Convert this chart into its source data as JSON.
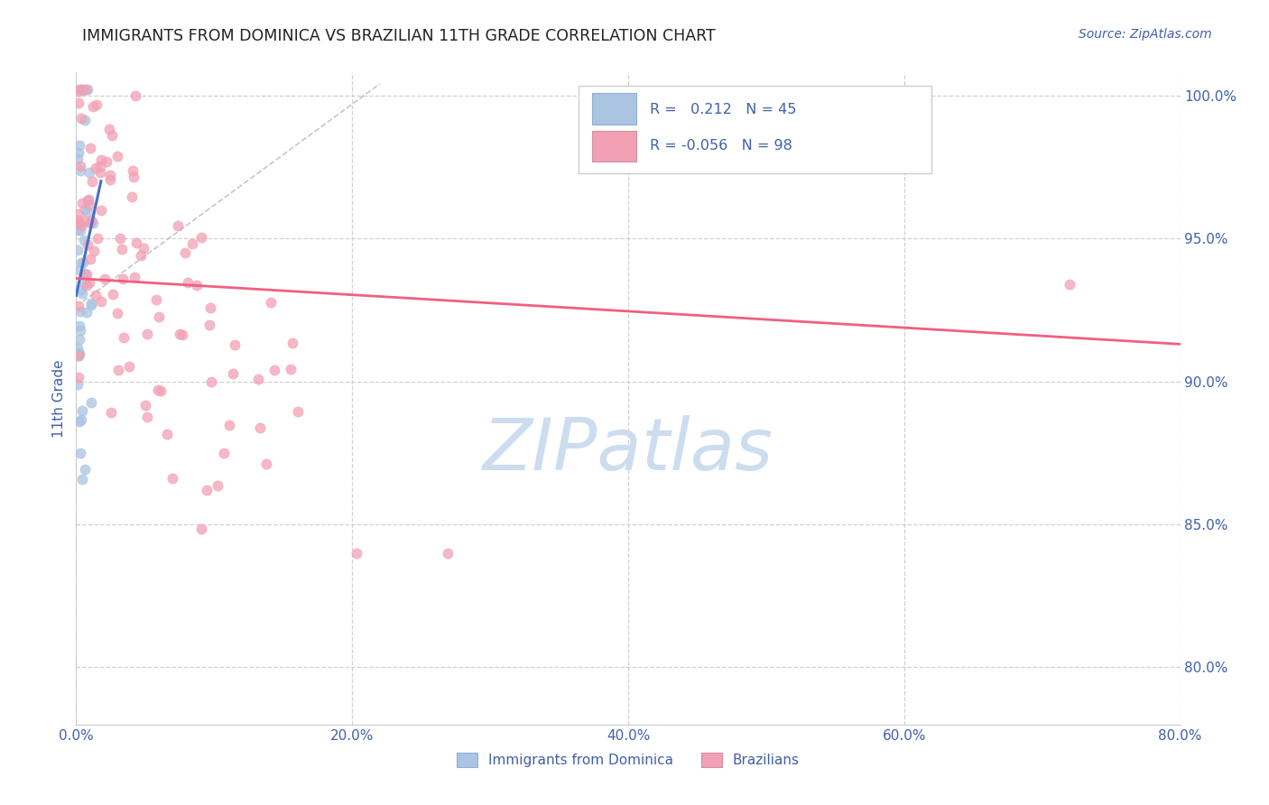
{
  "title": "IMMIGRANTS FROM DOMINICA VS BRAZILIAN 11TH GRADE CORRELATION CHART",
  "source": "Source: ZipAtlas.com",
  "ylabel": "11th Grade",
  "xlim": [
    0.0,
    0.8
  ],
  "ylim": [
    0.78,
    1.008
  ],
  "ytick_labels": [
    "80.0%",
    "85.0%",
    "90.0%",
    "95.0%",
    "100.0%"
  ],
  "ytick_values": [
    0.8,
    0.85,
    0.9,
    0.95,
    1.0
  ],
  "xtick_values": [
    0.0,
    0.2,
    0.4,
    0.6,
    0.8
  ],
  "xtick_labels": [
    "0.0%",
    "20.0%",
    "40.0%",
    "60.0%",
    "80.0%"
  ],
  "legend_label1": "Immigrants from Dominica",
  "legend_label2": "Brazilians",
  "R1": 0.212,
  "N1": 45,
  "R2": -0.056,
  "N2": 98,
  "color_dominica": "#aac4e2",
  "color_brazil": "#f2a0b4",
  "color_dominica_line": "#4472c4",
  "color_brazil_line": "#f06080",
  "color_ref_line": "#b8b8b8",
  "watermark_color": "#cdddf0",
  "background_color": "#ffffff",
  "grid_color": "#cccccc",
  "title_color": "#222222",
  "axis_label_color": "#4060aa",
  "tick_color": "#4060aa",
  "dom_line_x": [
    0.0,
    0.018
  ],
  "dom_line_y": [
    0.93,
    0.97
  ],
  "braz_line_x": [
    0.0,
    0.8
  ],
  "braz_line_y": [
    0.936,
    0.913
  ],
  "ref_line_x": [
    0.005,
    0.22
  ],
  "ref_line_y": [
    0.928,
    1.004
  ]
}
